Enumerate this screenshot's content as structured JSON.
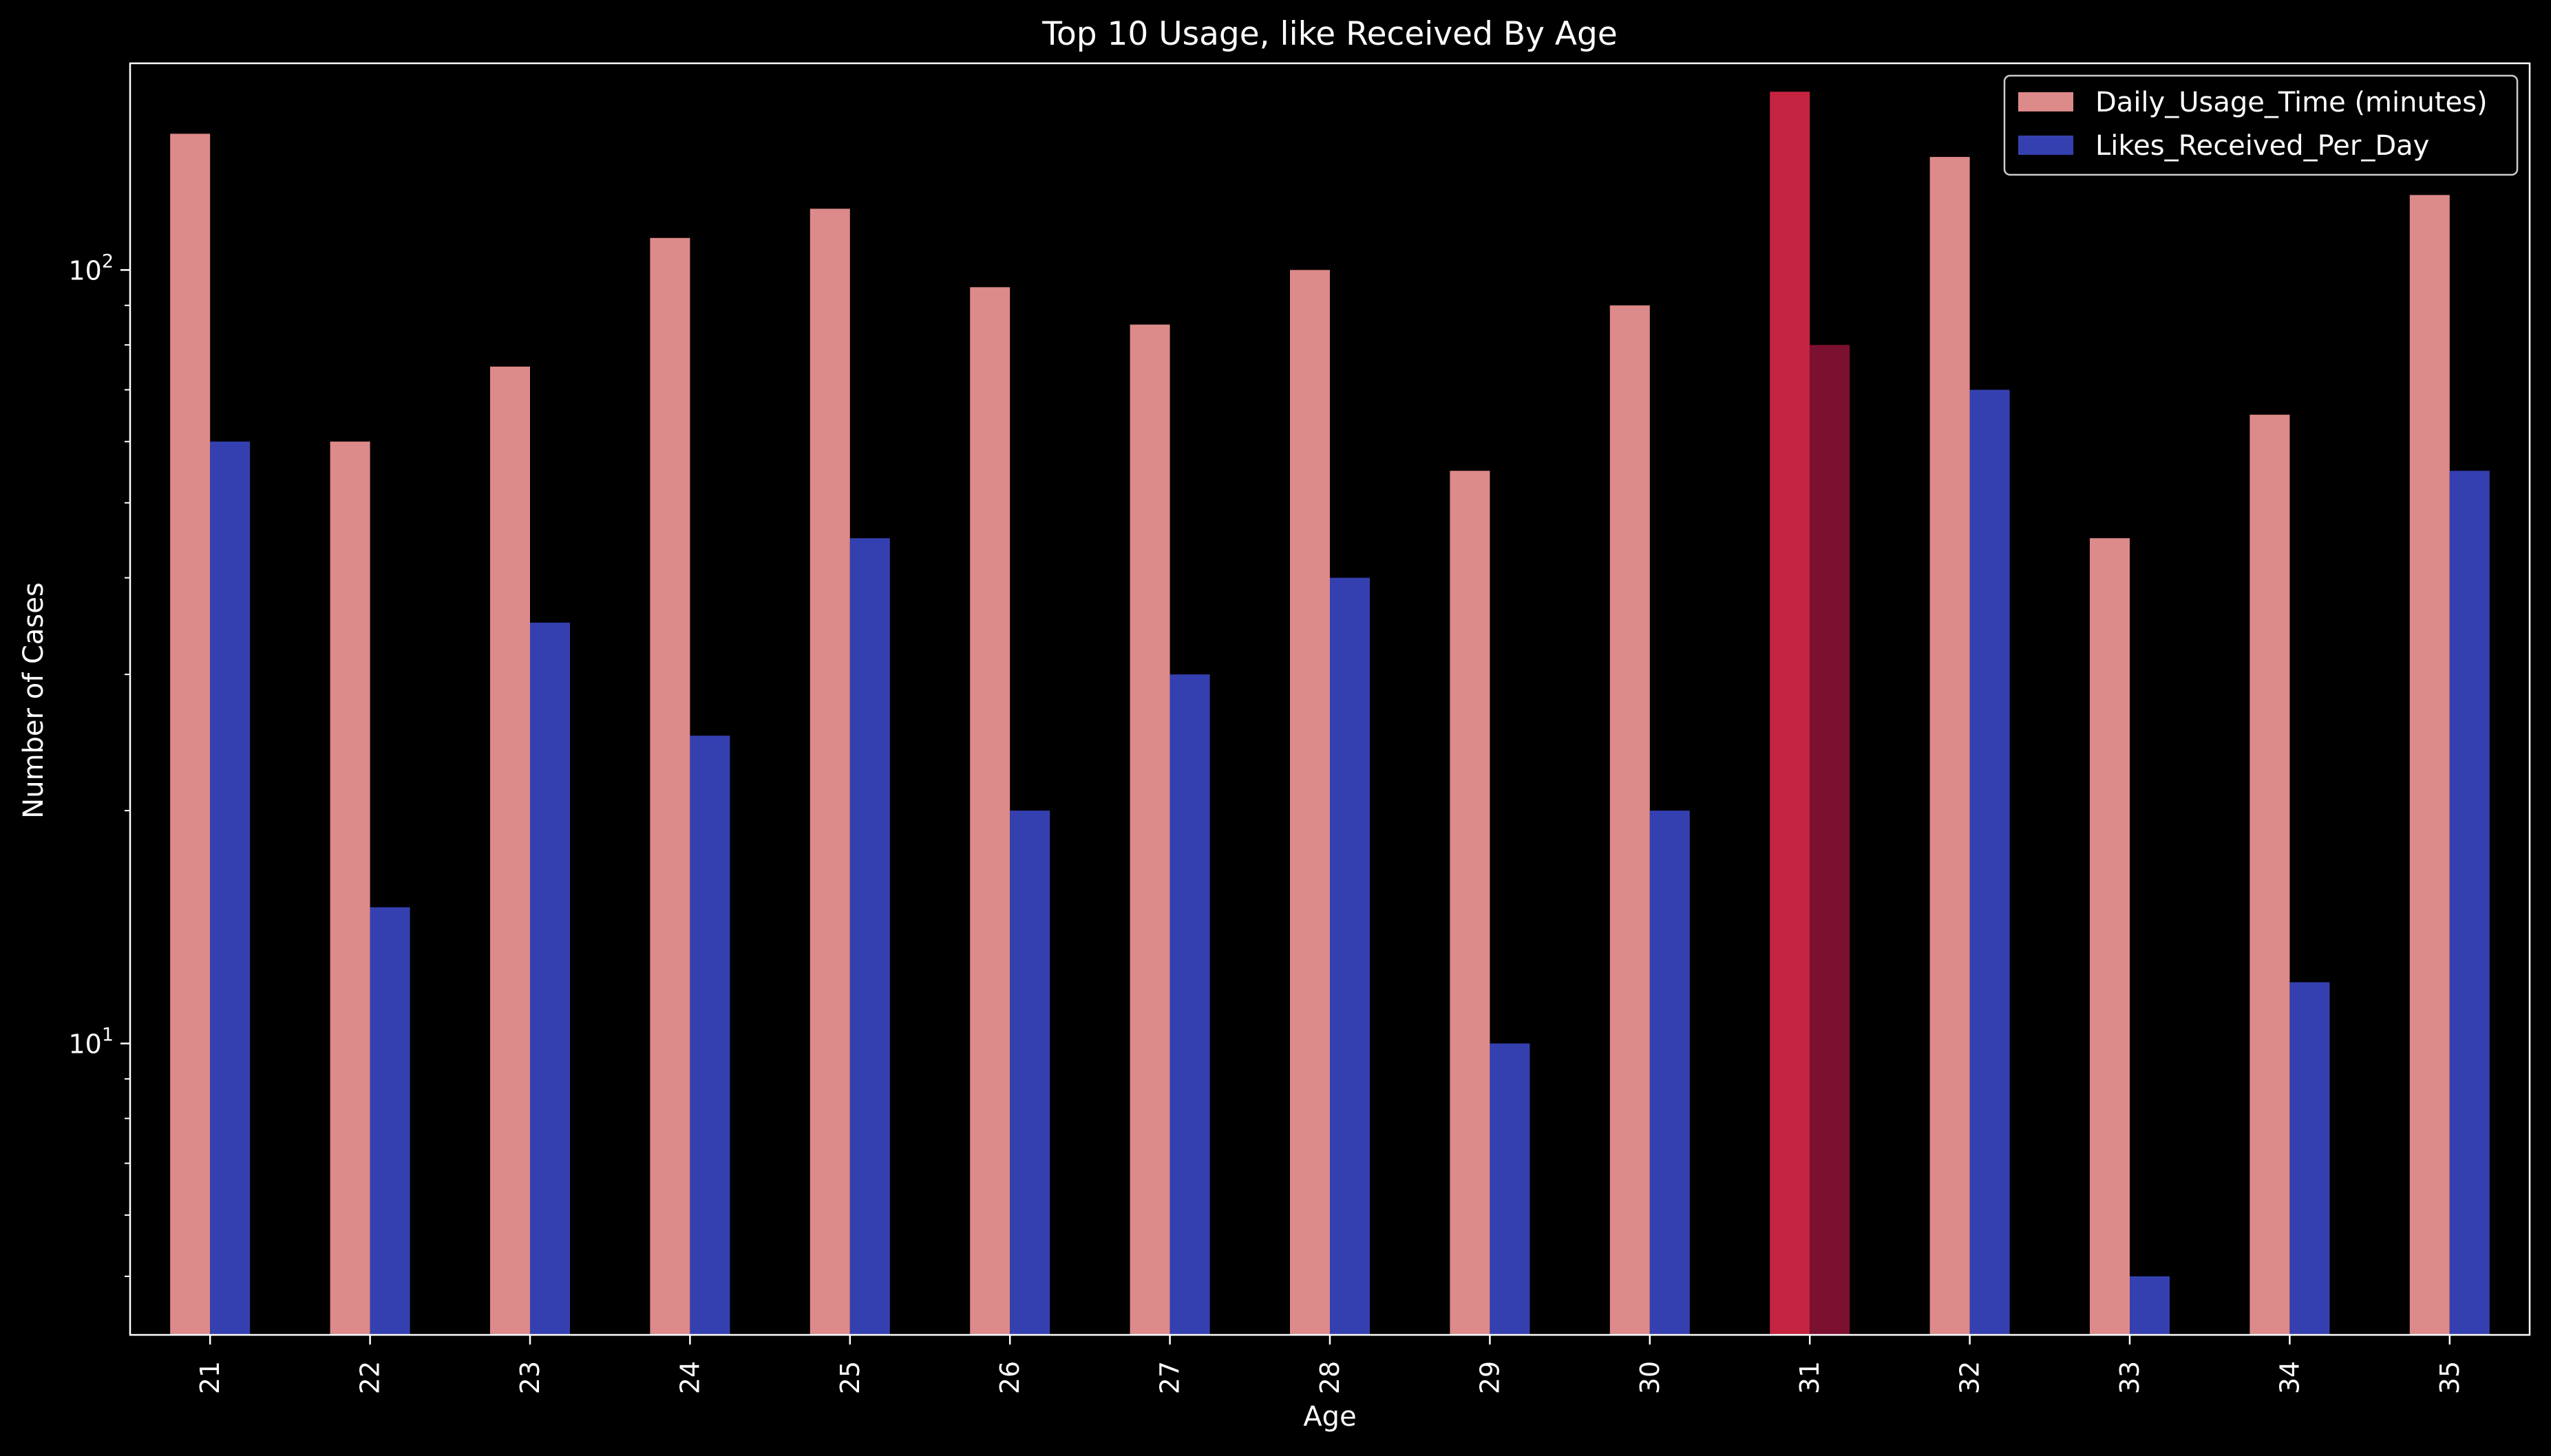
{
  "chart_data": {
    "type": "bar",
    "title": "Top 10 Usage, like Received By Age",
    "xlabel": "Age",
    "ylabel": "Number of Cases",
    "yscale": "log",
    "ylim": [
      4.2,
      185
    ],
    "y_ticks": [
      {
        "value": 10,
        "base": "10",
        "exp": "1"
      },
      {
        "value": 100,
        "base": "10",
        "exp": "2"
      }
    ],
    "categories": [
      "21",
      "22",
      "23",
      "24",
      "25",
      "26",
      "27",
      "28",
      "29",
      "30",
      "31",
      "32",
      "33",
      "34",
      "35"
    ],
    "series": [
      {
        "name": "Daily_Usage_Time (minutes)",
        "color": "#dd8a8a",
        "values": [
          150,
          60,
          75,
          110,
          120,
          95,
          85,
          100,
          55,
          90,
          170,
          140,
          45,
          65,
          125
        ]
      },
      {
        "name": "Likes_Received_Per_Day",
        "color": "#3540b0",
        "values": [
          60,
          15,
          35,
          25,
          45,
          20,
          30,
          40,
          10,
          20,
          80,
          70,
          5,
          12,
          55
        ]
      }
    ],
    "highlight": {
      "category": "31",
      "colors": [
        "#c42440",
        "#7c1030"
      ]
    },
    "legend": "top-right",
    "grid": false,
    "x_tick_rotation": "vertical",
    "background": "#000000",
    "text_color": "#ffffff"
  }
}
